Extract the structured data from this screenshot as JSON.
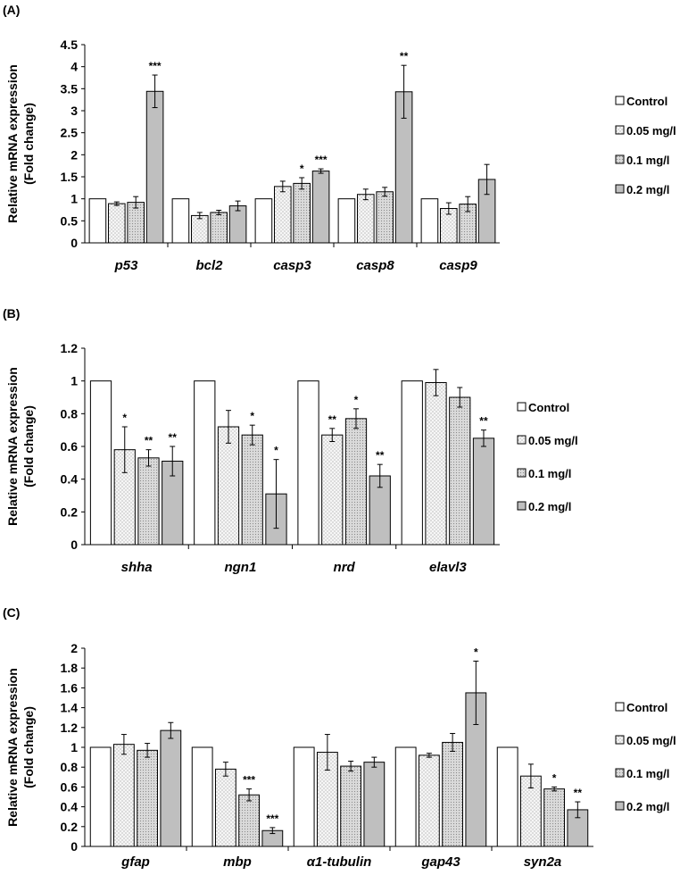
{
  "chart_data": [
    {
      "type": "bar",
      "panel_label": "(A)",
      "ylabel_line1": "Relative mRNA expression",
      "ylabel_line2": "(Fold change)",
      "ylim": [
        0,
        4.5
      ],
      "yticks": [
        "0",
        "0.5",
        "1",
        "1.5",
        "2",
        "2.5",
        "3",
        "3.5",
        "4",
        "4.5"
      ],
      "categories": [
        "p53",
        "bcl2",
        "casp3",
        "casp8",
        "casp9"
      ],
      "series": [
        {
          "name": "Control",
          "values": [
            1,
            1,
            1,
            1,
            1
          ],
          "errors": [
            0,
            0,
            0,
            0,
            0
          ],
          "sig": [
            "",
            "",
            "",
            "",
            ""
          ]
        },
        {
          "name": "0.05 mg/l",
          "values": [
            0.89,
            0.62,
            1.28,
            1.1,
            0.78
          ],
          "errors": [
            0.04,
            0.07,
            0.12,
            0.12,
            0.13
          ],
          "sig": [
            "",
            "",
            "",
            "",
            ""
          ]
        },
        {
          "name": "0.1 mg/l",
          "values": [
            0.92,
            0.69,
            1.35,
            1.16,
            0.88
          ],
          "errors": [
            0.13,
            0.05,
            0.13,
            0.1,
            0.17
          ],
          "sig": [
            "",
            "",
            "*",
            "",
            ""
          ]
        },
        {
          "name": "0.2 mg/l",
          "values": [
            3.44,
            0.84,
            1.63,
            3.43,
            1.44
          ],
          "errors": [
            0.37,
            0.11,
            0.05,
            0.6,
            0.34
          ],
          "sig": [
            "***",
            "",
            "***",
            "**",
            ""
          ]
        }
      ],
      "legend_position": "right",
      "grid": false
    },
    {
      "type": "bar",
      "panel_label": "(B)",
      "ylabel_line1": "Relative mRNA expression",
      "ylabel_line2": "(Fold change)",
      "ylim": [
        0,
        1.2
      ],
      "yticks": [
        "0",
        "0.2",
        "0.4",
        "0.6",
        "0.8",
        "1",
        "1.2"
      ],
      "categories": [
        "shha",
        "ngn1",
        "nrd",
        "elavl3"
      ],
      "series": [
        {
          "name": "Control",
          "values": [
            1,
            1,
            1,
            1
          ],
          "errors": [
            0,
            0,
            0,
            0
          ],
          "sig": [
            "",
            "",
            "",
            ""
          ]
        },
        {
          "name": "0.05 mg/l",
          "values": [
            0.58,
            0.72,
            0.67,
            0.99
          ],
          "errors": [
            0.14,
            0.1,
            0.04,
            0.08
          ],
          "sig": [
            "*",
            "",
            "**",
            ""
          ]
        },
        {
          "name": "0.1 mg/l",
          "values": [
            0.53,
            0.67,
            0.77,
            0.9
          ],
          "errors": [
            0.05,
            0.06,
            0.06,
            0.06
          ],
          "sig": [
            "**",
            "*",
            "*",
            ""
          ]
        },
        {
          "name": "0.2 mg/l",
          "values": [
            0.51,
            0.31,
            0.42,
            0.65
          ],
          "errors": [
            0.09,
            0.21,
            0.07,
            0.05
          ],
          "sig": [
            "**",
            "*",
            "**",
            "**"
          ]
        }
      ],
      "legend_position": "right",
      "grid": false
    },
    {
      "type": "bar",
      "panel_label": "(C)",
      "ylabel_line1": "Relative mRNA expression",
      "ylabel_line2": "(Fold change)",
      "ylim": [
        0,
        2
      ],
      "yticks": [
        "0",
        "0.2",
        "0.4",
        "0.6",
        "0.8",
        "1",
        "1.2",
        "1.4",
        "1.6",
        "1.8",
        "2"
      ],
      "categories": [
        "gfap",
        "mbp",
        "α1-tubulin",
        "gap43",
        "syn2a"
      ],
      "series": [
        {
          "name": "Control",
          "values": [
            1,
            1,
            1,
            1,
            1
          ],
          "errors": [
            0,
            0,
            0,
            0,
            0
          ],
          "sig": [
            "",
            "",
            "",
            "",
            ""
          ]
        },
        {
          "name": "0.05 mg/l",
          "values": [
            1.03,
            0.78,
            0.95,
            0.92,
            0.71
          ],
          "errors": [
            0.1,
            0.07,
            0.18,
            0.02,
            0.12
          ],
          "sig": [
            "",
            "",
            "",
            "",
            ""
          ]
        },
        {
          "name": "0.1 mg/l",
          "values": [
            0.97,
            0.52,
            0.81,
            1.05,
            0.58
          ],
          "errors": [
            0.07,
            0.06,
            0.05,
            0.09,
            0.02
          ],
          "sig": [
            "",
            "***",
            "",
            "",
            "*"
          ]
        },
        {
          "name": "0.2 mg/l",
          "values": [
            1.17,
            0.16,
            0.85,
            1.55,
            0.37
          ],
          "errors": [
            0.08,
            0.03,
            0.05,
            0.32,
            0.08
          ],
          "sig": [
            "",
            "***",
            "",
            "*",
            "**"
          ]
        }
      ],
      "legend_position": "right",
      "grid": false
    }
  ],
  "colors": {
    "control": "#ffffff",
    "dose_005": "#f2f2f2",
    "dose_01": "#d9d9d9",
    "dose_02": "#bfbfbf",
    "stroke": "#000000"
  }
}
